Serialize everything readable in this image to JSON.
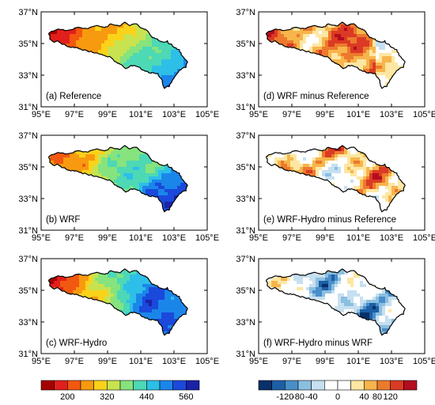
{
  "figure": {
    "longitude_ticks": [
      "95°E",
      "97°E",
      "99°E",
      "101°E",
      "103°E",
      "105°E"
    ],
    "latitude_ticks": [
      "37°N",
      "35°N",
      "33°N",
      "31°N"
    ],
    "panels": [
      {
        "id": "a",
        "label": "(a) Reference",
        "field": "ref"
      },
      {
        "id": "b",
        "label": "(b) WRF",
        "field": "wrf"
      },
      {
        "id": "c",
        "label": "(c) WRF-Hydro",
        "field": "hydro"
      },
      {
        "id": "d",
        "label": "(d) WRF minus Reference",
        "field": "d1"
      },
      {
        "id": "e",
        "label": "(e) WRF-Hydro minus Reference",
        "field": "d2"
      },
      {
        "id": "f",
        "label": "(f) WRF-Hydro minus WRF",
        "field": "d3"
      }
    ],
    "colorbar_left": {
      "colors": [
        "#a50000",
        "#e11f1c",
        "#f2580f",
        "#f89a0f",
        "#fbd21a",
        "#c8e34f",
        "#86e37d",
        "#4dd8b6",
        "#2dbfe8",
        "#1b86ea",
        "#1a49dc",
        "#1a22a8"
      ],
      "labels": [
        "200",
        "320",
        "440",
        "560"
      ]
    },
    "colorbar_right": {
      "colors": [
        "#08306b",
        "#1d5fa5",
        "#4a8ec9",
        "#8bbfe0",
        "#c6e0f1",
        "#ffffff",
        "#ffffff",
        "#fde7a3",
        "#f7b54b",
        "#ec7a2d",
        "#db3a24",
        "#b30d1f"
      ],
      "labels": [
        "-120",
        "-80",
        "-40",
        "0",
        "40",
        "80",
        "120"
      ]
    }
  }
}
